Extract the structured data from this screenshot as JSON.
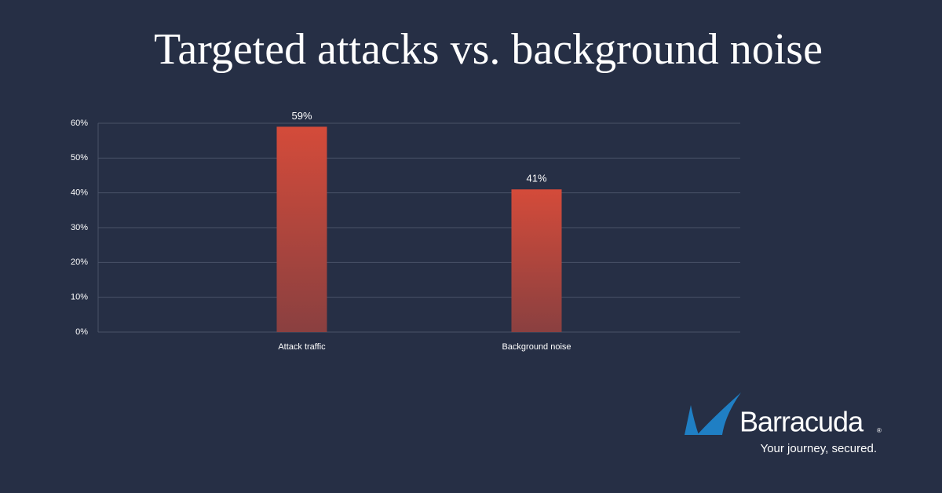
{
  "chart_data": {
    "type": "bar",
    "title": "Targeted attacks vs. background noise",
    "categories": [
      "Attack traffic",
      "Background noise"
    ],
    "values": [
      59,
      41
    ],
    "value_labels": [
      "59%",
      "41%"
    ],
    "color": "#c94a3c",
    "ylim": [
      0,
      60
    ],
    "yticks": [
      {
        "value": 0,
        "label": "0%"
      },
      {
        "value": 10,
        "label": "10%"
      },
      {
        "value": 20,
        "label": "20%"
      },
      {
        "value": 30,
        "label": "30%"
      },
      {
        "value": 40,
        "label": "40%"
      },
      {
        "value": 50,
        "label": "50%"
      },
      {
        "value": 60,
        "label": "60%"
      }
    ],
    "grid": true
  },
  "logo": {
    "name": "Barracuda",
    "mark": "®",
    "tagline": "Your journey, secured."
  }
}
